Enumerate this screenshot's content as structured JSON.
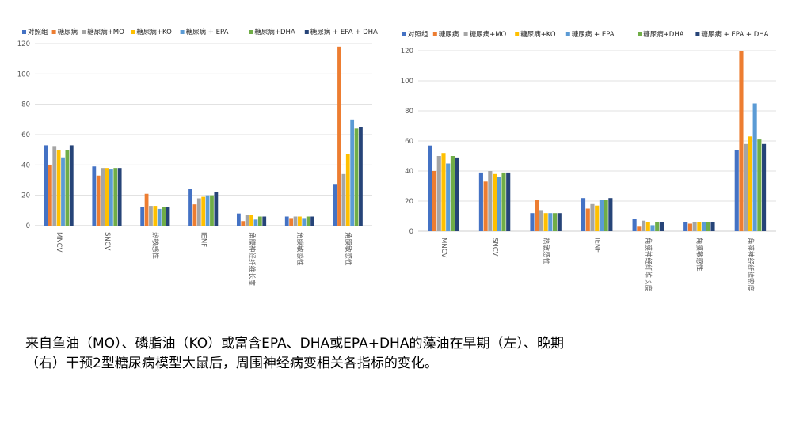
{
  "colors": {
    "series": [
      "#4472C4",
      "#ED7D31",
      "#A5A5A5",
      "#FFC000",
      "#5B9BD5",
      "#70AD47",
      "#264478"
    ],
    "grid": "#d9d9d9",
    "axis_text": "#595959"
  },
  "chart_data": [
    {
      "type": "bar",
      "title": "",
      "xlabel": "",
      "ylabel": "",
      "ylim": [
        0,
        120
      ],
      "yticks": [
        "0",
        "20",
        "40",
        "60",
        "80",
        "100",
        "120"
      ],
      "legend_position": "top",
      "grid": true,
      "categories": [
        "MNCV",
        "SNCV",
        "热敏感性",
        "IENF",
        "角膜神经纤维长度",
        "角膜敏感性",
        "角膜敏感性"
      ],
      "series": [
        {
          "name": "对照组",
          "values": [
            53,
            39,
            12,
            24,
            8,
            6,
            27
          ]
        },
        {
          "name": "糖尿病",
          "values": [
            40,
            33,
            21,
            14,
            3,
            5,
            118
          ]
        },
        {
          "name": "糖尿病+MO",
          "values": [
            52,
            38,
            13,
            18,
            7,
            6,
            34
          ]
        },
        {
          "name": "糖尿病+KO",
          "values": [
            50,
            38,
            13,
            19,
            7,
            6,
            47
          ]
        },
        {
          "name": "糖尿病 + EPA",
          "values": [
            45,
            37,
            11,
            20,
            4,
            5,
            70
          ]
        },
        {
          "name": "糖尿病+DHA",
          "values": [
            50,
            38,
            12,
            20,
            6,
            6,
            64
          ]
        },
        {
          "name": "糖尿病 + EPA + DHA",
          "values": [
            53,
            38,
            12,
            22,
            6,
            6,
            65
          ]
        }
      ]
    },
    {
      "type": "bar",
      "title": "",
      "xlabel": "",
      "ylabel": "",
      "ylim": [
        0,
        120
      ],
      "yticks": [
        "0",
        "20",
        "40",
        "60",
        "80",
        "100",
        "120"
      ],
      "legend_position": "top",
      "grid": true,
      "categories": [
        "MNCV",
        "SNCV",
        "热敏感性",
        "IENF",
        "角膜神经纤维长度",
        "角膜敏感性",
        "角膜神经纤维密度"
      ],
      "series": [
        {
          "name": "对照组",
          "values": [
            57,
            39,
            12,
            22,
            8,
            6,
            54
          ]
        },
        {
          "name": "糖尿病",
          "values": [
            40,
            33,
            21,
            15,
            3,
            5,
            120
          ]
        },
        {
          "name": "糖尿病+MO",
          "values": [
            50,
            40,
            14,
            18,
            7,
            6,
            58
          ]
        },
        {
          "name": "糖尿病+KO",
          "values": [
            52,
            38,
            12,
            17,
            6,
            6,
            63
          ]
        },
        {
          "name": "糖尿病 + EPA",
          "values": [
            45,
            36,
            12,
            21,
            4,
            6,
            85
          ]
        },
        {
          "name": "糖尿病+DHA",
          "values": [
            50,
            39,
            12,
            21,
            6,
            6,
            61
          ]
        },
        {
          "name": "糖尿病 + EPA + DHA",
          "values": [
            49,
            39,
            12,
            22,
            6,
            6,
            58
          ]
        }
      ]
    }
  ],
  "caption": {
    "line1": "来自鱼油（MO）、磷脂油（KO）或富含EPA、DHA或EPA+DHA的藻油在早期（左）、晚期",
    "line2": "（右）干预2型糖尿病模型大鼠后，周围神经病变相关各指标的变化。"
  }
}
